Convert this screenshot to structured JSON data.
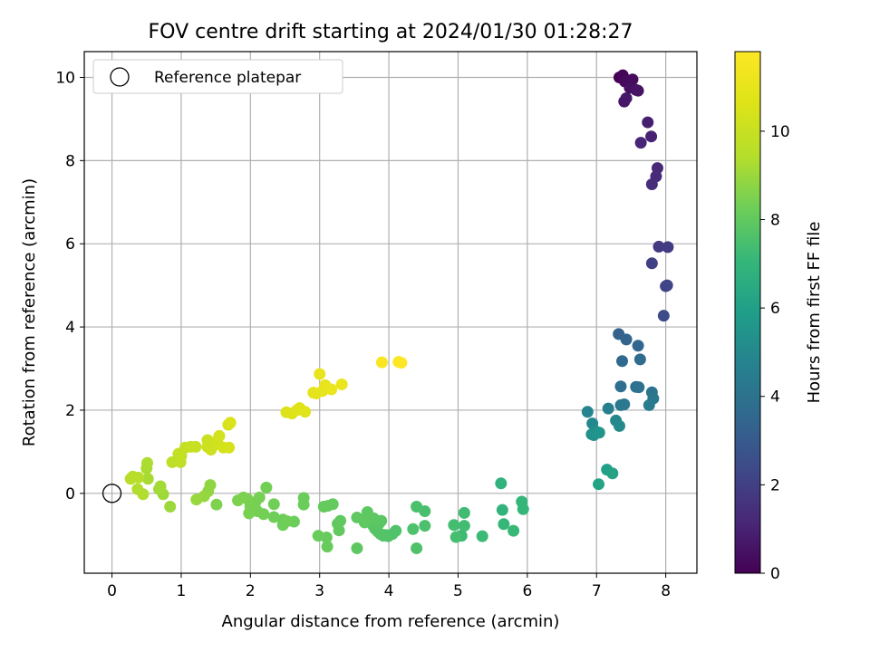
{
  "chart_data": {
    "type": "scatter",
    "title": "FOV centre drift starting at 2024/01/30 01:28:27",
    "xlabel": "Angular distance from reference (arcmin)",
    "ylabel": "Rotation from reference (arcmin)",
    "xlim": [
      -0.4,
      8.45
    ],
    "ylim": [
      -1.92,
      10.62
    ],
    "xticks": [
      0,
      1,
      2,
      3,
      4,
      5,
      6,
      7,
      8
    ],
    "yticks": [
      0,
      2,
      4,
      6,
      8,
      10
    ],
    "grid": true,
    "legend": {
      "position": "top-left",
      "entries": [
        "Reference platepar"
      ]
    },
    "reference_point": {
      "x": 0,
      "y": 0,
      "label": "Reference platepar"
    },
    "colorbar": {
      "label": "Hours from first FF file",
      "colormap": "viridis",
      "range": [
        0,
        11.8
      ],
      "ticks": [
        0,
        2,
        4,
        6,
        8,
        10
      ]
    },
    "points": [
      [
        7.33,
        10.0,
        0.0
      ],
      [
        7.38,
        10.05,
        0.1
      ],
      [
        7.41,
        9.9,
        0.2
      ],
      [
        7.52,
        9.95,
        0.3
      ],
      [
        7.48,
        9.75,
        0.4
      ],
      [
        7.57,
        9.7,
        0.5
      ],
      [
        7.6,
        9.68,
        0.55
      ],
      [
        7.4,
        9.42,
        0.65
      ],
      [
        7.43,
        9.5,
        0.7
      ],
      [
        7.74,
        8.92,
        0.9
      ],
      [
        7.79,
        8.58,
        1.0
      ],
      [
        7.64,
        8.43,
        1.1
      ],
      [
        7.88,
        7.82,
        1.2
      ],
      [
        7.86,
        7.62,
        1.3
      ],
      [
        7.8,
        7.43,
        1.4
      ],
      [
        7.9,
        5.93,
        1.8
      ],
      [
        8.03,
        5.92,
        1.9
      ],
      [
        7.8,
        5.53,
        2.0
      ],
      [
        8.0,
        4.98,
        2.1
      ],
      [
        8.02,
        5.0,
        2.2
      ],
      [
        7.97,
        4.27,
        2.4
      ],
      [
        7.32,
        3.83,
        3.3
      ],
      [
        7.43,
        3.7,
        3.4
      ],
      [
        7.6,
        3.55,
        3.5
      ],
      [
        7.37,
        3.18,
        3.6
      ],
      [
        7.63,
        3.22,
        3.7
      ],
      [
        7.35,
        2.57,
        3.8
      ],
      [
        7.57,
        2.56,
        3.9
      ],
      [
        7.61,
        2.55,
        4.0
      ],
      [
        7.8,
        2.43,
        4.1
      ],
      [
        7.82,
        2.28,
        4.2
      ],
      [
        7.35,
        2.12,
        4.25
      ],
      [
        7.4,
        2.14,
        4.3
      ],
      [
        7.76,
        2.12,
        4.4
      ],
      [
        7.17,
        2.04,
        4.6
      ],
      [
        6.87,
        1.96,
        4.8
      ],
      [
        7.28,
        1.75,
        4.9
      ],
      [
        6.94,
        1.68,
        5.0
      ],
      [
        7.33,
        1.62,
        5.1
      ],
      [
        6.99,
        1.49,
        5.2
      ],
      [
        6.93,
        1.42,
        5.3
      ],
      [
        6.96,
        1.4,
        5.4
      ],
      [
        7.04,
        1.46,
        5.5
      ],
      [
        7.15,
        0.57,
        6.0
      ],
      [
        7.23,
        0.48,
        6.1
      ],
      [
        7.03,
        0.22,
        6.2
      ],
      [
        5.62,
        0.24,
        6.8
      ],
      [
        5.64,
        -0.4,
        6.9
      ],
      [
        5.92,
        -0.2,
        7.0
      ],
      [
        5.94,
        -0.38,
        7.05
      ],
      [
        5.66,
        -0.74,
        7.1
      ],
      [
        5.8,
        -0.9,
        7.15
      ],
      [
        5.35,
        -1.03,
        7.2
      ],
      [
        5.05,
        -1.02,
        7.25
      ],
      [
        5.09,
        -0.47,
        7.3
      ],
      [
        5.09,
        -0.78,
        7.35
      ],
      [
        4.94,
        -0.76,
        7.4
      ],
      [
        4.97,
        -1.05,
        7.45
      ],
      [
        4.52,
        -0.43,
        7.5
      ],
      [
        4.4,
        -0.32,
        7.52
      ],
      [
        4.52,
        -0.78,
        7.55
      ],
      [
        4.35,
        -0.86,
        7.58
      ],
      [
        4.4,
        -1.32,
        7.6
      ],
      [
        4.1,
        -0.9,
        7.62
      ],
      [
        4.05,
        -0.98,
        7.64
      ],
      [
        3.99,
        -1.03,
        7.66
      ],
      [
        3.95,
        -1.0,
        7.68
      ],
      [
        3.92,
        -1.02,
        7.7
      ],
      [
        3.88,
        -0.98,
        7.72
      ],
      [
        3.84,
        -0.92,
        7.74
      ],
      [
        3.8,
        -0.85,
        7.76
      ],
      [
        3.77,
        -0.77,
        7.78
      ],
      [
        3.74,
        -0.7,
        7.8
      ],
      [
        3.72,
        -0.63,
        7.82
      ],
      [
        3.69,
        -0.55,
        7.84
      ],
      [
        3.86,
        -0.72,
        7.85
      ],
      [
        3.89,
        -0.66,
        7.86
      ],
      [
        3.78,
        -0.6,
        7.88
      ],
      [
        3.69,
        -0.45,
        7.9
      ],
      [
        3.54,
        -1.32,
        7.92
      ],
      [
        3.54,
        -0.58,
        7.94
      ],
      [
        3.65,
        -0.7,
        7.96
      ],
      [
        3.3,
        -0.66,
        7.98
      ],
      [
        3.26,
        -0.73,
        8.0
      ],
      [
        3.28,
        -0.89,
        8.02
      ],
      [
        3.19,
        -0.26,
        8.04
      ],
      [
        3.12,
        -0.3,
        8.06
      ],
      [
        3.06,
        -0.32,
        8.08
      ],
      [
        3.1,
        -1.06,
        8.1
      ],
      [
        3.11,
        -1.28,
        8.12
      ],
      [
        2.98,
        -1.02,
        8.14
      ],
      [
        2.77,
        -0.11,
        8.16
      ],
      [
        2.77,
        -0.27,
        8.18
      ],
      [
        2.63,
        -0.68,
        8.2
      ],
      [
        2.47,
        -0.63,
        8.22
      ],
      [
        2.47,
        -0.76,
        8.24
      ],
      [
        2.53,
        -0.67,
        8.26
      ],
      [
        2.34,
        -0.57,
        8.28
      ],
      [
        2.34,
        -0.26,
        8.3
      ],
      [
        2.23,
        0.14,
        8.32
      ],
      [
        2.19,
        -0.5,
        8.34
      ],
      [
        2.1,
        -0.43,
        8.36
      ],
      [
        2.07,
        -0.22,
        8.38
      ],
      [
        2.13,
        -0.1,
        8.4
      ],
      [
        2.0,
        -0.32,
        8.42
      ],
      [
        1.98,
        -0.48,
        8.44
      ],
      [
        1.96,
        -0.14,
        8.46
      ],
      [
        1.9,
        -0.1,
        8.48
      ],
      [
        1.82,
        -0.17,
        8.5
      ],
      [
        1.51,
        -0.27,
        8.52
      ],
      [
        1.42,
        0.2,
        8.8
      ],
      [
        1.39,
        0.05,
        8.85
      ],
      [
        1.33,
        -0.07,
        8.9
      ],
      [
        1.22,
        -0.15,
        8.95
      ],
      [
        0.84,
        -0.32,
        9.0
      ],
      [
        0.74,
        -0.02,
        9.05
      ],
      [
        0.68,
        0.1,
        9.1
      ],
      [
        0.7,
        0.17,
        9.15
      ],
      [
        0.52,
        0.35,
        9.2
      ],
      [
        0.5,
        0.6,
        9.25
      ],
      [
        0.51,
        0.73,
        9.3
      ],
      [
        0.45,
        -0.02,
        9.35
      ],
      [
        0.37,
        0.1,
        9.4
      ],
      [
        0.3,
        0.4,
        9.45
      ],
      [
        0.38,
        0.38,
        9.5
      ],
      [
        0.27,
        0.35,
        9.55
      ],
      [
        0.87,
        0.75,
        9.7
      ],
      [
        0.99,
        0.75,
        9.75
      ],
      [
        1.0,
        0.9,
        9.8
      ],
      [
        0.96,
        0.95,
        9.85
      ],
      [
        1.06,
        1.1,
        9.9
      ],
      [
        1.14,
        1.12,
        9.95
      ],
      [
        1.21,
        1.12,
        10.0
      ],
      [
        1.38,
        1.28,
        10.05
      ],
      [
        1.38,
        1.12,
        10.1
      ],
      [
        1.43,
        1.05,
        10.15
      ],
      [
        1.5,
        1.18,
        10.2
      ],
      [
        1.52,
        1.27,
        10.25
      ],
      [
        1.55,
        1.38,
        10.3
      ],
      [
        1.61,
        1.1,
        10.35
      ],
      [
        1.69,
        1.1,
        10.4
      ],
      [
        1.68,
        1.65,
        10.45
      ],
      [
        1.71,
        1.7,
        10.5
      ],
      [
        2.52,
        1.95,
        10.6
      ],
      [
        2.6,
        1.92,
        10.65
      ],
      [
        2.67,
        2.0,
        10.7
      ],
      [
        2.71,
        2.05,
        10.75
      ],
      [
        2.79,
        1.96,
        10.8
      ],
      [
        2.91,
        2.42,
        10.85
      ],
      [
        2.95,
        2.4,
        10.9
      ],
      [
        3.04,
        2.46,
        10.95
      ],
      [
        3.0,
        2.87,
        11.0
      ],
      [
        3.08,
        2.6,
        11.05
      ],
      [
        3.17,
        2.5,
        11.1
      ],
      [
        3.32,
        2.62,
        11.15
      ],
      [
        3.9,
        3.15,
        11.6
      ],
      [
        4.14,
        3.16,
        11.7
      ],
      [
        4.18,
        3.14,
        11.8
      ]
    ]
  }
}
